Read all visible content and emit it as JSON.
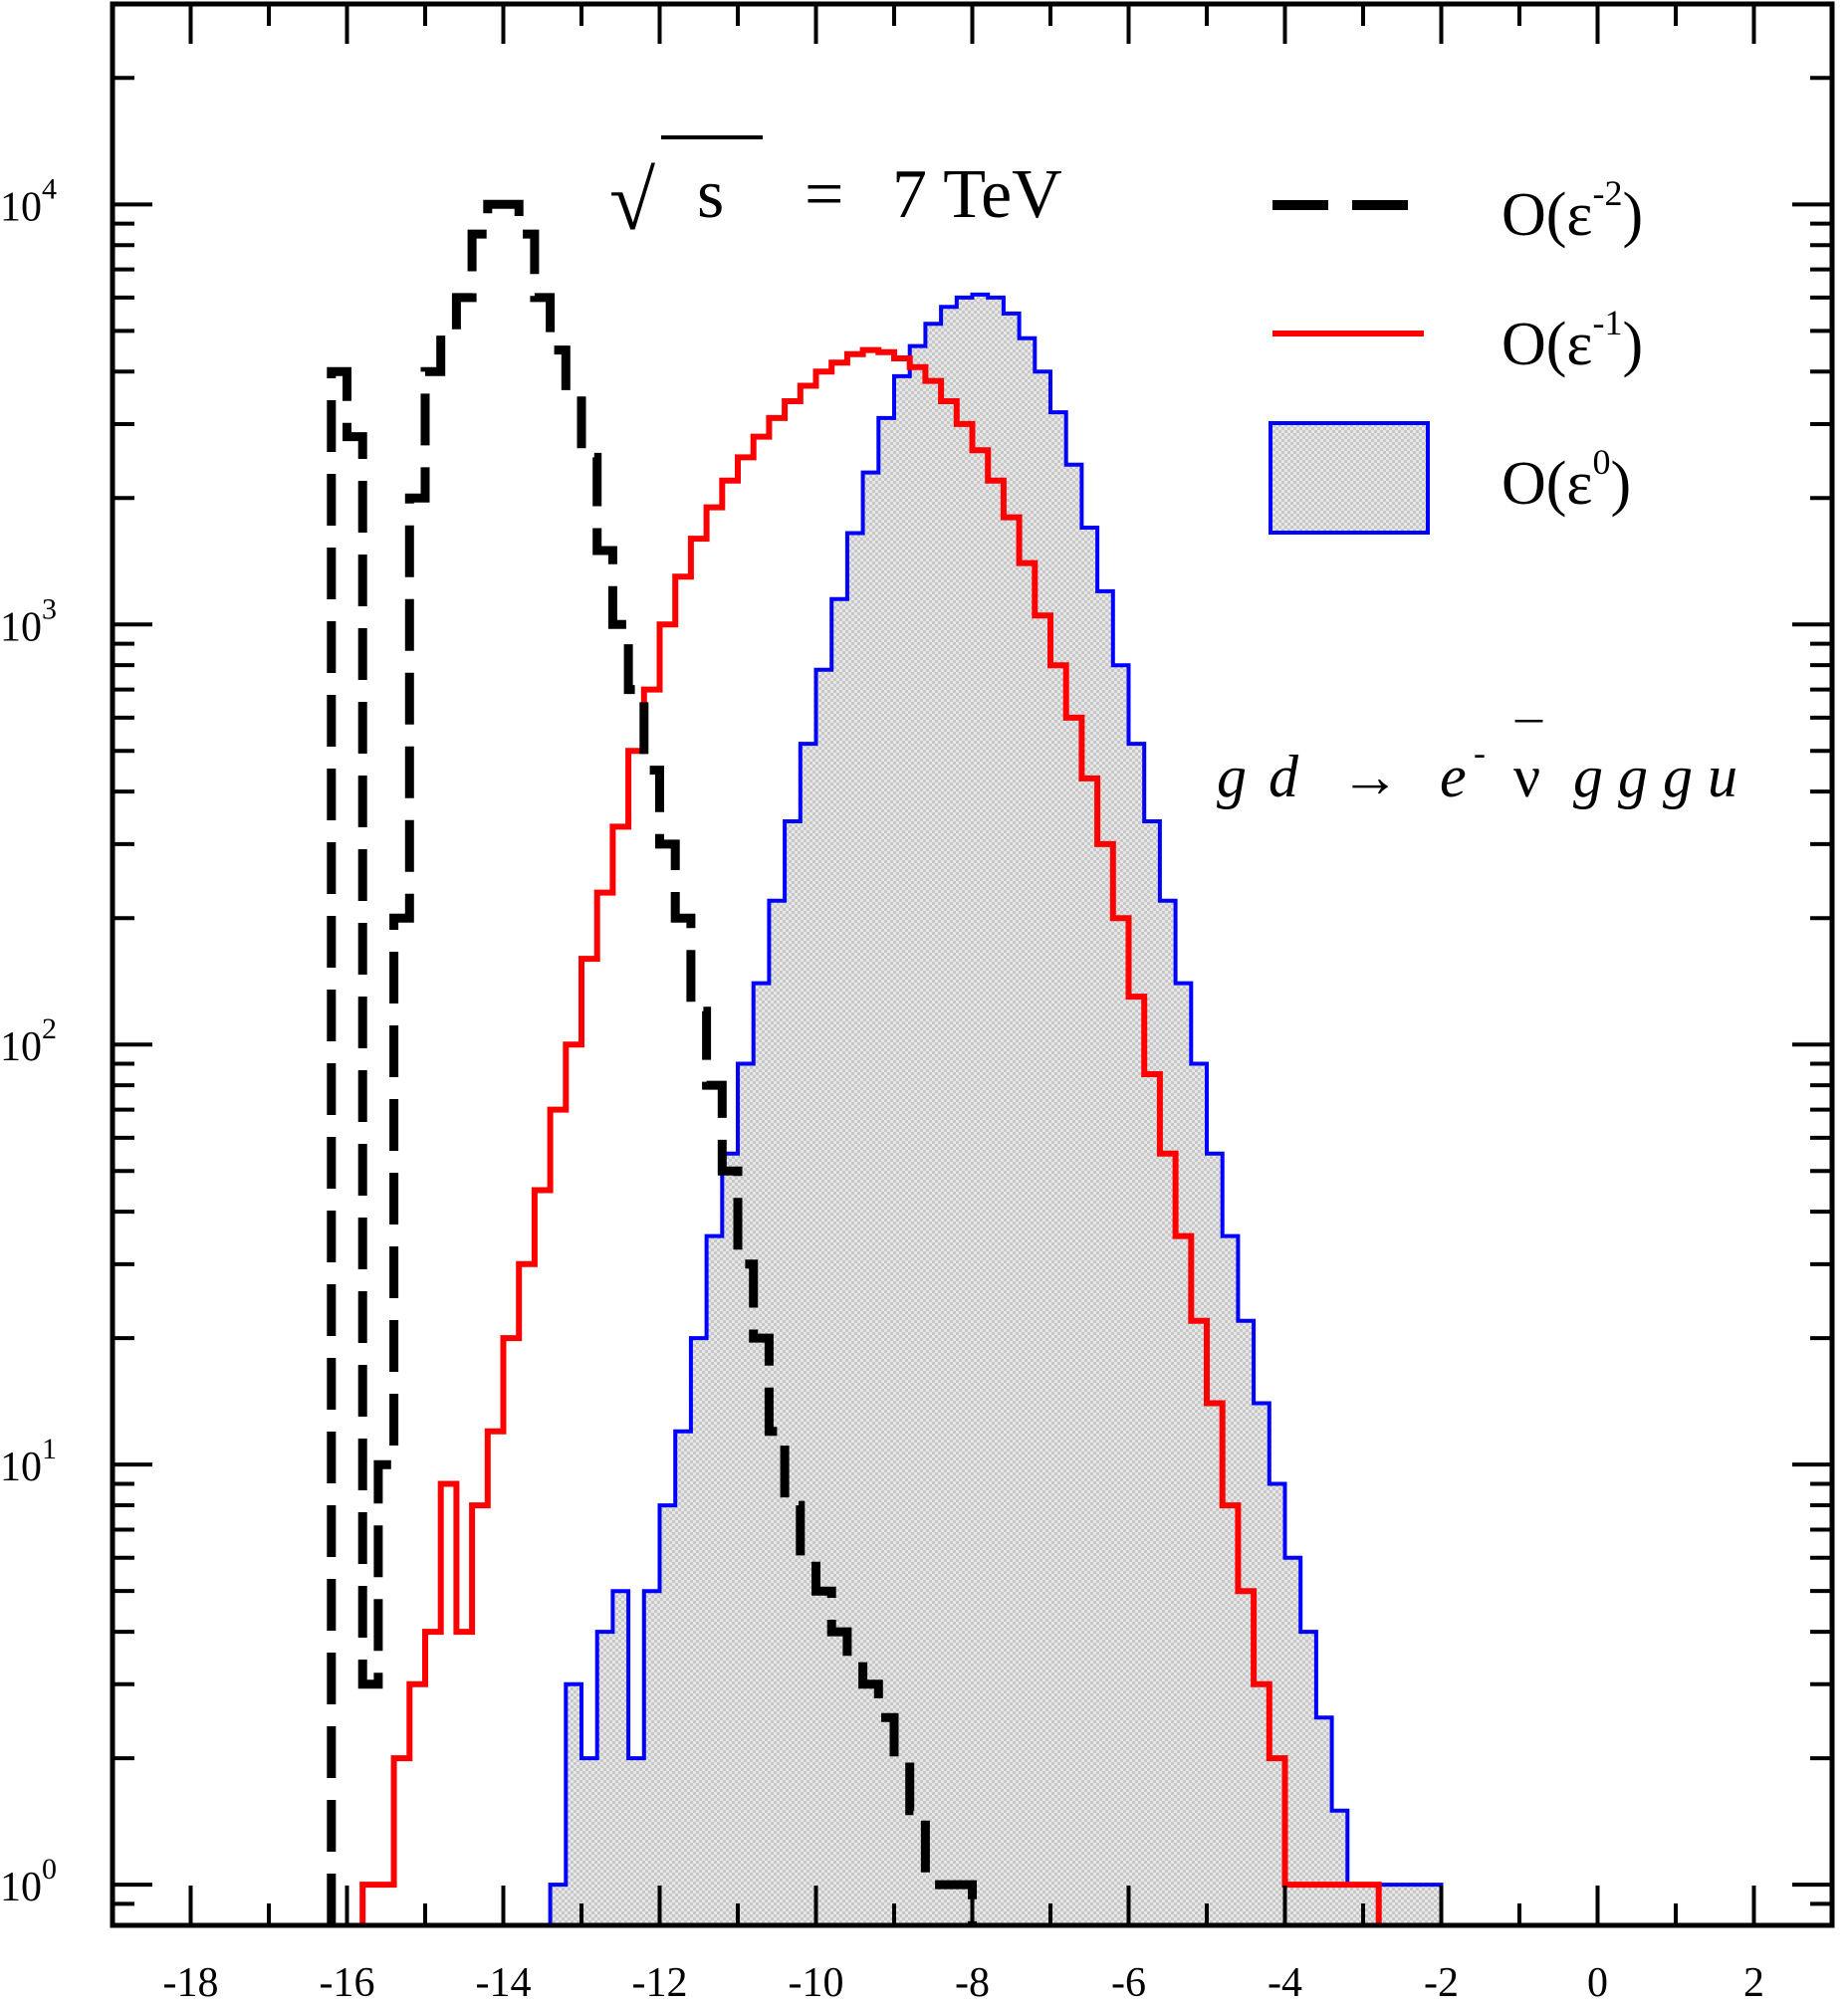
{
  "chart_data": {
    "type": "histogram",
    "x_scale": "linear",
    "y_scale": "log",
    "xlim": [
      -19,
      3
    ],
    "ylim": [
      0.8,
      30000
    ],
    "x_ticks": [
      -18,
      -16,
      -14,
      -12,
      -10,
      -8,
      -6,
      -4,
      -2,
      0,
      2
    ],
    "x_tick_labels": [
      "-18",
      "-16",
      "-14",
      "-12",
      "-10",
      "-8",
      "-6",
      "-4",
      "-2",
      "0",
      "2"
    ],
    "y_ticks": [
      1,
      10,
      100,
      1000,
      10000
    ],
    "y_tick_labels": [
      {
        "base": "10",
        "exp": "0"
      },
      {
        "base": "10",
        "exp": "1"
      },
      {
        "base": "10",
        "exp": "2"
      },
      {
        "base": "10",
        "exp": "3"
      },
      {
        "base": "10",
        "exp": "4"
      }
    ],
    "grid": false,
    "annotations": {
      "energy": {
        "sqrt_symbol": "√",
        "s": "s",
        "equals": "=",
        "value": "7 TeV"
      },
      "process": {
        "g": "g",
        "d": "d",
        "arrow": "→",
        "e": "e",
        "e_sup": "-",
        "nu": "ν",
        "nu_bar": "¯",
        "tail": "g g g u"
      }
    },
    "legend": {
      "placement": "top-right",
      "entries": [
        {
          "base": "O(ε",
          "exp": "-2",
          "close": ")"
        },
        {
          "base": "O(ε",
          "exp": "-1",
          "close": ")"
        },
        {
          "base": "O(ε",
          "exp": "0",
          "close": ")"
        }
      ]
    },
    "series": [
      {
        "style": "dashed",
        "color": "#000000",
        "bins": [
          [
            -16.1,
            4000
          ],
          [
            -15.9,
            2800
          ],
          [
            -15.7,
            3
          ],
          [
            -15.5,
            10
          ],
          [
            -15.3,
            200
          ],
          [
            -15.1,
            2000
          ],
          [
            -14.9,
            4000
          ],
          [
            -14.7,
            5000
          ],
          [
            -14.5,
            6000
          ],
          [
            -14.3,
            8500
          ],
          [
            -14.1,
            10000
          ],
          [
            -13.9,
            10000
          ],
          [
            -13.7,
            8500
          ],
          [
            -13.5,
            6000
          ],
          [
            -13.3,
            4500
          ],
          [
            -13.1,
            3500
          ],
          [
            -12.9,
            2500
          ],
          [
            -12.7,
            1500
          ],
          [
            -12.5,
            1000
          ],
          [
            -12.3,
            700
          ],
          [
            -12.1,
            450
          ],
          [
            -11.9,
            300
          ],
          [
            -11.7,
            200
          ],
          [
            -11.5,
            120
          ],
          [
            -11.3,
            80
          ],
          [
            -11.1,
            50
          ],
          [
            -10.9,
            30
          ],
          [
            -10.7,
            20
          ],
          [
            -10.5,
            12
          ],
          [
            -10.3,
            8
          ],
          [
            -10.1,
            6
          ],
          [
            -9.9,
            5
          ],
          [
            -9.7,
            4
          ],
          [
            -9.5,
            3.5
          ],
          [
            -9.3,
            3
          ],
          [
            -9.1,
            2.5
          ],
          [
            -8.9,
            2
          ],
          [
            -8.7,
            1.5
          ],
          [
            -8.5,
            1
          ],
          [
            -8.3,
            1
          ],
          [
            -8.1,
            1
          ]
        ]
      },
      {
        "style": "solid",
        "color": "#ff0000",
        "bins": [
          [
            -15.7,
            1
          ],
          [
            -15.5,
            1
          ],
          [
            -15.3,
            2
          ],
          [
            -15.1,
            3
          ],
          [
            -14.9,
            4
          ],
          [
            -14.7,
            9
          ],
          [
            -14.5,
            4
          ],
          [
            -14.3,
            8
          ],
          [
            -14.1,
            12
          ],
          [
            -13.9,
            20
          ],
          [
            -13.7,
            30
          ],
          [
            -13.5,
            45
          ],
          [
            -13.3,
            70
          ],
          [
            -13.1,
            100
          ],
          [
            -12.9,
            160
          ],
          [
            -12.7,
            230
          ],
          [
            -12.5,
            330
          ],
          [
            -12.3,
            500
          ],
          [
            -12.1,
            700
          ],
          [
            -11.9,
            1000
          ],
          [
            -11.7,
            1300
          ],
          [
            -11.5,
            1600
          ],
          [
            -11.3,
            1900
          ],
          [
            -11.1,
            2200
          ],
          [
            -10.9,
            2500
          ],
          [
            -10.7,
            2800
          ],
          [
            -10.5,
            3100
          ],
          [
            -10.3,
            3400
          ],
          [
            -10.1,
            3700
          ],
          [
            -9.9,
            4000
          ],
          [
            -9.7,
            4200
          ],
          [
            -9.5,
            4400
          ],
          [
            -9.3,
            4500
          ],
          [
            -9.1,
            4450
          ],
          [
            -8.9,
            4300
          ],
          [
            -8.7,
            4100
          ],
          [
            -8.5,
            3800
          ],
          [
            -8.3,
            3400
          ],
          [
            -8.1,
            3000
          ],
          [
            -7.9,
            2600
          ],
          [
            -7.7,
            2200
          ],
          [
            -7.5,
            1800
          ],
          [
            -7.3,
            1400
          ],
          [
            -7.1,
            1050
          ],
          [
            -6.9,
            800
          ],
          [
            -6.7,
            600
          ],
          [
            -6.5,
            430
          ],
          [
            -6.3,
            300
          ],
          [
            -6.1,
            200
          ],
          [
            -5.9,
            130
          ],
          [
            -5.7,
            85
          ],
          [
            -5.5,
            55
          ],
          [
            -5.3,
            35
          ],
          [
            -5.1,
            22
          ],
          [
            -4.9,
            14
          ],
          [
            -4.7,
            8
          ],
          [
            -4.5,
            5
          ],
          [
            -4.3,
            3
          ],
          [
            -4.1,
            2
          ],
          [
            -3.9,
            1
          ],
          [
            -3.7,
            1
          ],
          [
            -3.5,
            1
          ],
          [
            -3.3,
            1
          ],
          [
            -3.1,
            1
          ],
          [
            -2.9,
            1
          ]
        ]
      },
      {
        "style": "filled",
        "color": "#0000ff",
        "fill": "#dcdcdc",
        "bins": [
          [
            -13.3,
            1
          ],
          [
            -13.1,
            3
          ],
          [
            -12.9,
            2
          ],
          [
            -12.7,
            4
          ],
          [
            -12.5,
            5
          ],
          [
            -12.3,
            2
          ],
          [
            -12.1,
            5
          ],
          [
            -11.9,
            8
          ],
          [
            -11.7,
            12
          ],
          [
            -11.5,
            20
          ],
          [
            -11.3,
            35
          ],
          [
            -11.1,
            55
          ],
          [
            -10.9,
            90
          ],
          [
            -10.7,
            140
          ],
          [
            -10.5,
            220
          ],
          [
            -10.3,
            340
          ],
          [
            -10.1,
            520
          ],
          [
            -9.9,
            780
          ],
          [
            -9.7,
            1150
          ],
          [
            -9.5,
            1650
          ],
          [
            -9.3,
            2300
          ],
          [
            -9.1,
            3100
          ],
          [
            -8.9,
            3900
          ],
          [
            -8.7,
            4600
          ],
          [
            -8.5,
            5200
          ],
          [
            -8.3,
            5700
          ],
          [
            -8.1,
            6000
          ],
          [
            -7.9,
            6100
          ],
          [
            -7.7,
            6000
          ],
          [
            -7.5,
            5500
          ],
          [
            -7.3,
            4800
          ],
          [
            -7.1,
            4000
          ],
          [
            -6.9,
            3200
          ],
          [
            -6.7,
            2400
          ],
          [
            -6.5,
            1700
          ],
          [
            -6.3,
            1200
          ],
          [
            -6.1,
            800
          ],
          [
            -5.9,
            520
          ],
          [
            -5.7,
            340
          ],
          [
            -5.5,
            220
          ],
          [
            -5.3,
            140
          ],
          [
            -5.1,
            90
          ],
          [
            -4.9,
            55
          ],
          [
            -4.7,
            35
          ],
          [
            -4.5,
            22
          ],
          [
            -4.3,
            14
          ],
          [
            -4.1,
            9
          ],
          [
            -3.9,
            6
          ],
          [
            -3.7,
            4
          ],
          [
            -3.5,
            2.5
          ],
          [
            -3.3,
            1.5
          ],
          [
            -3.1,
            1
          ],
          [
            -2.9,
            1
          ],
          [
            -2.7,
            1
          ],
          [
            -2.5,
            1
          ],
          [
            -2.3,
            1
          ],
          [
            -2.1,
            1
          ]
        ]
      }
    ]
  }
}
